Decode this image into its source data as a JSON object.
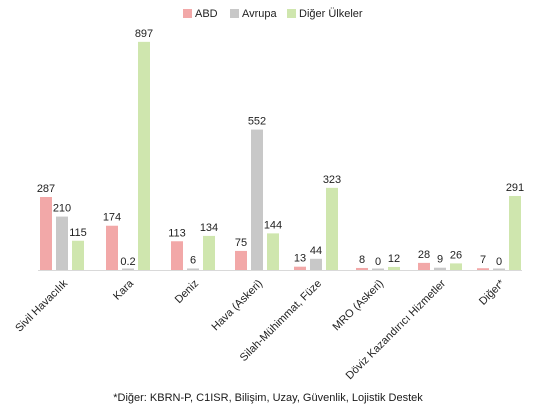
{
  "chart_data": {
    "type": "bar",
    "categories": [
      "Sivil Havacılık",
      "Kara",
      "Deniz",
      "Hava (Askeri)",
      "Silah-Mühimmat, Füze",
      "MRO (Askeri)",
      "Döviz Kazandırıcı Hizmetler",
      "Diğer*"
    ],
    "series": [
      {
        "name": "ABD",
        "color": "#f2a8a8",
        "values": [
          287,
          174,
          113,
          75,
          13,
          8,
          28,
          7
        ],
        "labels": [
          "287",
          "174",
          "113",
          "75",
          "13",
          "8",
          "28",
          "7"
        ]
      },
      {
        "name": "Avrupa",
        "color": "#c8c8c8",
        "values": [
          210,
          0.2,
          6,
          552,
          44,
          0,
          9,
          0
        ],
        "labels": [
          "210",
          "0.2",
          "6",
          "552",
          "44",
          "0",
          "9",
          "0"
        ]
      },
      {
        "name": "Diğer Ülkeler",
        "color": "#cfe6ae",
        "values": [
          115,
          897,
          134,
          144,
          323,
          12,
          26,
          291
        ],
        "labels": [
          "115",
          "897",
          "134",
          "144",
          "323",
          "12",
          "26",
          "291"
        ]
      }
    ],
    "ylim": [
      0,
      920
    ],
    "grid": false,
    "legend_position": "top-center",
    "title": "",
    "xlabel": "",
    "ylabel": ""
  },
  "footnote": "*Diğer: KBRN-P, C1ISR, Bilişim, Uzay, Güvenlik, Lojistik Destek"
}
